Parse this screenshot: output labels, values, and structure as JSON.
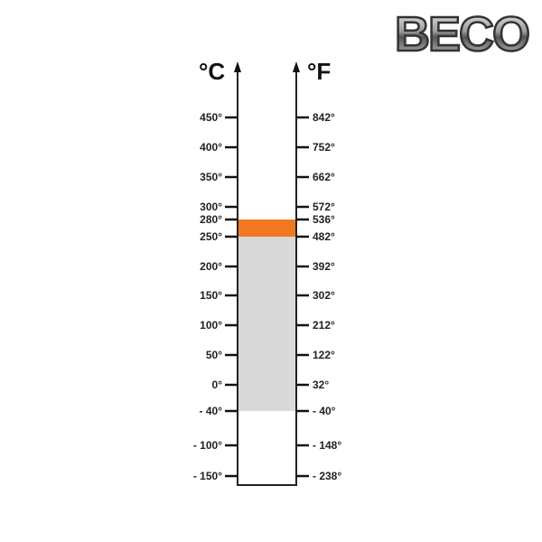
{
  "logo": {
    "text": "BECO"
  },
  "units": {
    "left": "°C",
    "right": "°F"
  },
  "chart_data": {
    "type": "range-scale",
    "ticks": [
      {
        "c": "450°",
        "f": "842°"
      },
      {
        "c": "400°",
        "f": "752°"
      },
      {
        "c": "350°",
        "f": "662°"
      },
      {
        "c": "300°",
        "f": "572°"
      },
      {
        "c": "280°",
        "f": "536°"
      },
      {
        "c": "250°",
        "f": "482°"
      },
      {
        "c": "200°",
        "f": "392°"
      },
      {
        "c": "150°",
        "f": "302°"
      },
      {
        "c": "100°",
        "f": "212°"
      },
      {
        "c": "50°",
        "f": "122°"
      },
      {
        "c": "0°",
        "f": "32°"
      },
      {
        "c": "- 40°",
        "f": "- 40°"
      },
      {
        "c": "- 100°",
        "f": "- 148°"
      },
      {
        "c": "- 150°",
        "f": "- 238°"
      }
    ],
    "ranges": [
      {
        "from_c": -40,
        "to_c": 250,
        "color": "#d9d9d9"
      },
      {
        "from_c": 250,
        "to_c": 280,
        "color": "#f07820"
      }
    ]
  }
}
